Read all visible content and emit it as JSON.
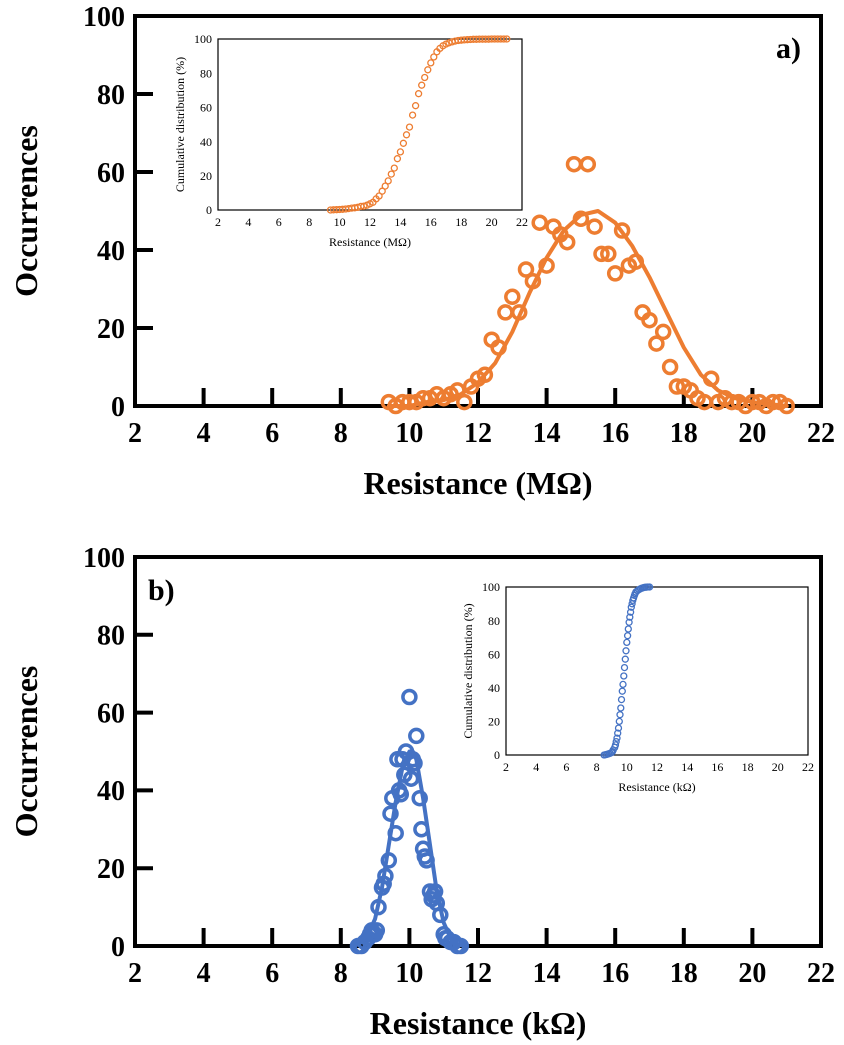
{
  "colors": {
    "orange": "#ED7D31",
    "blue": "#4472C4",
    "axis": "#000000"
  },
  "chart_data": [
    {
      "type": "scatter",
      "panel_label": "a)",
      "xlabel": "Resistance  (MΩ)",
      "ylabel": "Occurrences",
      "xlim": [
        2,
        22
      ],
      "ylim": [
        0,
        100
      ],
      "xticks": [
        2,
        4,
        6,
        8,
        10,
        12,
        14,
        16,
        18,
        20,
        22
      ],
      "yticks": [
        0,
        20,
        40,
        60,
        80,
        100
      ],
      "grid": false,
      "legend": "none",
      "series": [
        {
          "kind": "markers",
          "marker": "open-circle",
          "color": "#ED7D31",
          "x": [
            9.4,
            9.6,
            9.8,
            10.0,
            10.2,
            10.4,
            10.6,
            10.8,
            11.0,
            11.2,
            11.4,
            11.6,
            11.8,
            12.0,
            12.2,
            12.4,
            12.6,
            12.8,
            13.0,
            13.2,
            13.4,
            13.6,
            13.8,
            14.0,
            14.2,
            14.4,
            14.6,
            14.8,
            15.0,
            15.2,
            15.4,
            15.6,
            15.8,
            16.0,
            16.2,
            16.4,
            16.6,
            16.8,
            17.0,
            17.2,
            17.4,
            17.6,
            17.8,
            18.0,
            18.2,
            18.4,
            18.6,
            18.8,
            19.0,
            19.2,
            19.4,
            19.6,
            19.8,
            20.0,
            20.2,
            20.4,
            20.6,
            20.8,
            21.0
          ],
          "y": [
            1,
            0,
            1,
            1,
            1,
            2,
            2,
            3,
            2,
            3,
            4,
            1,
            5,
            7,
            8,
            17,
            15,
            24,
            28,
            24,
            35,
            32,
            47,
            36,
            46,
            44,
            42,
            62,
            48,
            62,
            46,
            39,
            39,
            34,
            45,
            36,
            37,
            24,
            22,
            16,
            19,
            10,
            5,
            5,
            4,
            2,
            1,
            7,
            1,
            2,
            1,
            1,
            0,
            1,
            1,
            0,
            1,
            1,
            0
          ]
        },
        {
          "kind": "fit-line",
          "color": "#ED7D31",
          "x": [
            9.4,
            10.0,
            10.5,
            11.0,
            11.5,
            12.0,
            12.5,
            13.0,
            13.5,
            14.0,
            14.5,
            15.0,
            15.5,
            16.0,
            16.5,
            17.0,
            17.5,
            18.0,
            18.5,
            19.0,
            19.5,
            20.0,
            20.5,
            21.0
          ],
          "y": [
            0,
            0,
            1,
            1.5,
            3,
            6,
            11,
            19,
            29,
            38,
            45,
            49,
            50,
            47,
            41,
            33,
            24,
            15,
            8,
            4,
            2,
            1,
            0.5,
            0
          ]
        }
      ],
      "inset": {
        "xlabel": "Resistance  (MΩ)",
        "ylabel": "Cumulative distribution (%)",
        "xlim": [
          2,
          22
        ],
        "ylim": [
          0,
          100
        ],
        "xticks": [
          2,
          4,
          6,
          8,
          10,
          12,
          14,
          16,
          18,
          20,
          22
        ],
        "yticks": [
          0,
          20,
          40,
          60,
          80,
          100
        ],
        "series": [
          {
            "kind": "markers",
            "marker": "open-circle",
            "color": "#ED7D31",
            "x": [
              9.4,
              9.6,
              9.8,
              10.0,
              10.2,
              10.4,
              10.6,
              10.8,
              11.0,
              11.2,
              11.4,
              11.6,
              11.8,
              12.0,
              12.2,
              12.4,
              12.6,
              12.8,
              13.0,
              13.2,
              13.4,
              13.6,
              13.8,
              14.0,
              14.2,
              14.4,
              14.6,
              14.8,
              15.0,
              15.2,
              15.4,
              15.6,
              15.8,
              16.0,
              16.2,
              16.4,
              16.6,
              16.8,
              17.0,
              17.2,
              17.4,
              17.6,
              17.8,
              18.0,
              18.2,
              18.4,
              18.6,
              18.8,
              19.0,
              19.2,
              19.4,
              19.6,
              19.8,
              20.0,
              20.2,
              20.4,
              20.6,
              20.8,
              21.0
            ],
            "y": [
              0,
              0.1,
              0.2,
              0.3,
              0.4,
              0.6,
              0.8,
              1.1,
              1.3,
              1.6,
              2.1,
              2.2,
              2.8,
              3.6,
              4.5,
              6.5,
              8.2,
              11,
              14,
              17,
              21,
              24.5,
              30,
              34,
              39,
              44,
              48.5,
              55.5,
              61,
              68,
              73,
              77.5,
              82,
              86,
              89.5,
              92.5,
              94.5,
              96,
              97,
              97.8,
              98.3,
              98.8,
              99.1,
              99.3,
              99.5,
              99.6,
              99.7,
              99.8,
              99.8,
              99.9,
              99.9,
              99.9,
              99.9,
              100,
              100,
              100,
              100,
              100,
              100
            ]
          }
        ]
      }
    },
    {
      "type": "scatter",
      "panel_label": "b)",
      "xlabel": "Resistance  (kΩ)",
      "ylabel": "Occurrences",
      "xlim": [
        2,
        22
      ],
      "ylim": [
        0,
        100
      ],
      "xticks": [
        2,
        4,
        6,
        8,
        10,
        12,
        14,
        16,
        18,
        20,
        22
      ],
      "yticks": [
        0,
        20,
        40,
        60,
        80,
        100
      ],
      "grid": false,
      "legend": "none",
      "series": [
        {
          "kind": "markers",
          "marker": "open-circle",
          "color": "#4472C4",
          "x": [
            8.5,
            8.6,
            8.7,
            8.8,
            8.85,
            8.9,
            8.95,
            9.0,
            9.05,
            9.1,
            9.2,
            9.25,
            9.3,
            9.4,
            9.45,
            9.5,
            9.6,
            9.65,
            9.7,
            9.75,
            9.8,
            9.85,
            9.9,
            10.0,
            10.05,
            10.1,
            10.15,
            10.2,
            10.3,
            10.35,
            10.4,
            10.45,
            10.5,
            10.6,
            10.65,
            10.7,
            10.75,
            10.8,
            10.9,
            11.0,
            11.05,
            11.1,
            11.2,
            11.3,
            11.4,
            11.5
          ],
          "y": [
            0,
            0,
            1,
            2,
            3,
            4,
            3,
            3,
            4,
            10,
            15,
            16,
            18,
            22,
            34,
            38,
            29,
            48,
            40,
            39,
            48,
            44,
            50,
            64,
            43,
            48,
            47,
            54,
            38,
            30,
            25,
            23,
            22,
            14,
            12,
            13,
            14,
            11,
            8,
            3,
            2,
            2,
            1,
            1,
            0,
            0
          ]
        },
        {
          "kind": "fit-line",
          "color": "#4472C4",
          "x": [
            8.4,
            8.6,
            8.8,
            9.0,
            9.2,
            9.4,
            9.6,
            9.8,
            10.0,
            10.1,
            10.2,
            10.4,
            10.6,
            10.8,
            11.0,
            11.2,
            11.4,
            11.6
          ],
          "y": [
            0,
            1,
            3,
            7,
            15,
            26,
            37,
            46,
            50,
            50,
            48,
            38,
            26,
            14,
            6,
            2,
            0.5,
            0
          ]
        }
      ],
      "inset": {
        "xlabel": "Resistance  (kΩ)",
        "ylabel": "Cumulative distribution (%)",
        "xlim": [
          2,
          22
        ],
        "ylim": [
          0,
          100
        ],
        "xticks": [
          2,
          4,
          6,
          8,
          10,
          12,
          14,
          16,
          18,
          20,
          22
        ],
        "yticks": [
          0,
          20,
          40,
          60,
          80,
          100
        ],
        "series": [
          {
            "kind": "markers",
            "marker": "open-circle",
            "color": "#4472C4",
            "x": [
              8.5,
              8.6,
              8.7,
              8.8,
              8.9,
              9.0,
              9.05,
              9.1,
              9.2,
              9.25,
              9.3,
              9.35,
              9.4,
              9.45,
              9.5,
              9.55,
              9.6,
              9.65,
              9.7,
              9.75,
              9.8,
              9.85,
              9.9,
              9.95,
              10.0,
              10.05,
              10.1,
              10.15,
              10.2,
              10.25,
              10.3,
              10.35,
              10.4,
              10.45,
              10.5,
              10.55,
              10.6,
              10.7,
              10.8,
              10.9,
              11.0,
              11.1,
              11.2,
              11.3,
              11.4,
              11.5
            ],
            "y": [
              0,
              0.2,
              0.4,
              0.7,
              1,
              1.5,
              2,
              3,
              4.5,
              6,
              8,
              10,
              13,
              16,
              20,
              24,
              28,
              33,
              38,
              42,
              47,
              52,
              57,
              62,
              67,
              71,
              75,
              79,
              82,
              85,
              88,
              90,
              92,
              93.5,
              95,
              96,
              97,
              97.8,
              98.4,
              98.9,
              99.3,
              99.6,
              99.8,
              99.9,
              100,
              100
            ]
          }
        ]
      }
    }
  ]
}
